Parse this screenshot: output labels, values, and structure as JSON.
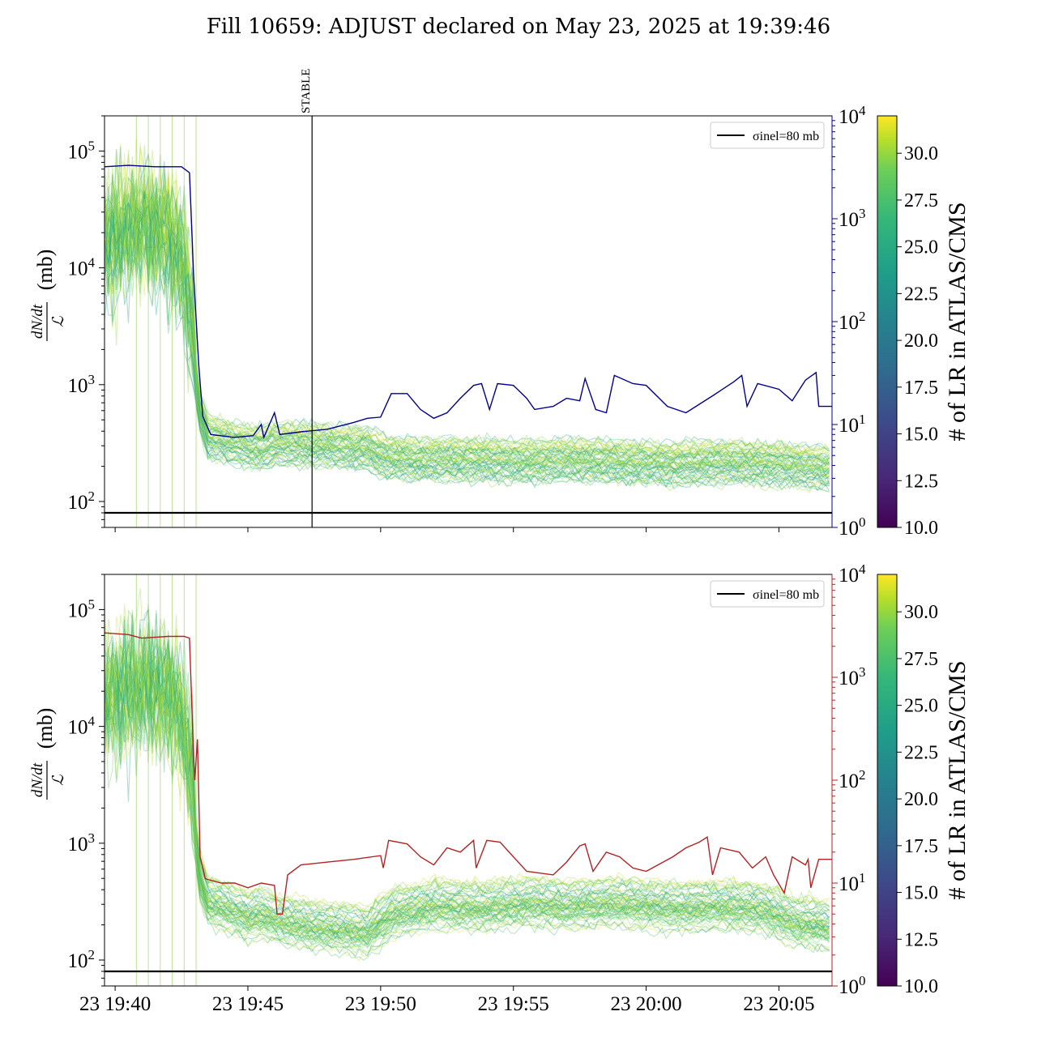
{
  "title": "Fill 10659: ADJUST declared on May 23, 2025 at 19:39:46",
  "chart_data": [
    {
      "type": "line",
      "panel": "top",
      "ylabel": "dN/dt / ℒ (mb)",
      "ylabel_num": "dN/dt",
      "ylabel_den": "ℒ",
      "ylabel_unit": "(mb)",
      "yscale": "log",
      "ylim": [
        60,
        200000
      ],
      "yticks": [
        "10^2",
        "10^3",
        "10^4",
        "10^5"
      ],
      "xlim_minutes_after_1940": [
        -0.4,
        27.0
      ],
      "xticks": [
        "23 19:40",
        "23 19:45",
        "23 19:50",
        "23 19:55",
        "23 20:00",
        "23 20:05"
      ],
      "legend": {
        "label": "σinel=80 mb",
        "placement": "upper right"
      },
      "reference_line": {
        "name": "σinel=80 mb",
        "y": 80,
        "color": "#000000"
      },
      "vline": {
        "label": "STABLE",
        "x_time": "23 19:47:25"
      },
      "twin_axis": {
        "yscale": "log",
        "ylim": [
          1,
          10000
        ],
        "ticks": [
          "10^0",
          "10^1",
          "10^2",
          "10^3",
          "10^4"
        ],
        "color": "#00008b"
      },
      "band_median": [
        [
          -0.4,
          18000
        ],
        [
          0.5,
          22000
        ],
        [
          1.2,
          25000
        ],
        [
          2.0,
          20000
        ],
        [
          2.5,
          12000
        ],
        [
          2.9,
          4000
        ],
        [
          3.1,
          700
        ],
        [
          3.5,
          380
        ],
        [
          4.5,
          330
        ],
        [
          5.5,
          300
        ],
        [
          6.0,
          330
        ],
        [
          7.5,
          320
        ],
        [
          9.5,
          300
        ],
        [
          10.2,
          250
        ],
        [
          12.0,
          240
        ],
        [
          14.0,
          240
        ],
        [
          15.5,
          230
        ],
        [
          17.0,
          240
        ],
        [
          19.0,
          230
        ],
        [
          21.0,
          220
        ],
        [
          23.0,
          230
        ],
        [
          25.0,
          220
        ],
        [
          27.0,
          200
        ]
      ],
      "colorbar": {
        "label": "# of LR in ATLAS/CMS",
        "range": [
          10.0,
          32.0
        ],
        "ticks": [
          "10.0",
          "12.5",
          "15.0",
          "17.5",
          "20.0",
          "22.5",
          "25.0",
          "27.5",
          "30.0"
        ],
        "colormap": "viridis"
      },
      "series_twin": [
        [
          -0.4,
          3200
        ],
        [
          0.5,
          3300
        ],
        [
          1.5,
          3200
        ],
        [
          2.5,
          3200
        ],
        [
          2.8,
          2800
        ],
        [
          2.95,
          300
        ],
        [
          3.15,
          38
        ],
        [
          3.3,
          12
        ],
        [
          3.6,
          8
        ],
        [
          4.5,
          7.5
        ],
        [
          5.2,
          7.8
        ],
        [
          5.5,
          10
        ],
        [
          5.6,
          7.5
        ],
        [
          6.0,
          13
        ],
        [
          6.2,
          8
        ],
        [
          7.0,
          8.5
        ],
        [
          8.0,
          9
        ],
        [
          9.0,
          10.5
        ],
        [
          9.5,
          11.5
        ],
        [
          10.0,
          11.8
        ],
        [
          10.4,
          20
        ],
        [
          11.0,
          20
        ],
        [
          11.5,
          14
        ],
        [
          12.0,
          11.5
        ],
        [
          12.5,
          13
        ],
        [
          13.0,
          18
        ],
        [
          13.5,
          24
        ],
        [
          13.8,
          25
        ],
        [
          14.1,
          14
        ],
        [
          14.4,
          25
        ],
        [
          15.0,
          24
        ],
        [
          15.5,
          18
        ],
        [
          15.8,
          14
        ],
        [
          16.5,
          15
        ],
        [
          17.0,
          18
        ],
        [
          17.5,
          17
        ],
        [
          17.7,
          28
        ],
        [
          18.1,
          14
        ],
        [
          18.5,
          13
        ],
        [
          18.8,
          30
        ],
        [
          19.5,
          25
        ],
        [
          20.0,
          24
        ],
        [
          20.8,
          15
        ],
        [
          21.5,
          13
        ],
        [
          22.5,
          19
        ],
        [
          23.3,
          26
        ],
        [
          23.6,
          30
        ],
        [
          23.8,
          15
        ],
        [
          24.2,
          25
        ],
        [
          25.0,
          22
        ],
        [
          25.5,
          17
        ],
        [
          26.0,
          27
        ],
        [
          26.4,
          32
        ],
        [
          26.5,
          15
        ],
        [
          27.0,
          15
        ]
      ]
    },
    {
      "type": "line",
      "panel": "bottom",
      "ylabel": "dN/dt / ℒ (mb)",
      "ylabel_num": "dN/dt",
      "ylabel_den": "ℒ",
      "ylabel_unit": "(mb)",
      "yscale": "log",
      "ylim": [
        60,
        200000
      ],
      "yticks": [
        "10^2",
        "10^3",
        "10^4",
        "10^5"
      ],
      "xlim_minutes_after_1940": [
        -0.4,
        27.0
      ],
      "xticks": [
        "23 19:40",
        "23 19:45",
        "23 19:50",
        "23 19:55",
        "23 20:00",
        "23 20:05"
      ],
      "legend": {
        "label": "σinel=80 mb",
        "placement": "upper right"
      },
      "reference_line": {
        "name": "σinel=80 mb",
        "y": 80,
        "color": "#000000"
      },
      "twin_axis": {
        "yscale": "log",
        "ylim": [
          1,
          10000
        ],
        "ticks": [
          "10^0",
          "10^1",
          "10^2",
          "10^3",
          "10^4"
        ],
        "color": "#b22222"
      },
      "band_median": [
        [
          -0.4,
          18000
        ],
        [
          0.5,
          22000
        ],
        [
          1.2,
          25000
        ],
        [
          2.0,
          20000
        ],
        [
          2.5,
          12000
        ],
        [
          2.9,
          4000
        ],
        [
          3.1,
          600
        ],
        [
          3.5,
          330
        ],
        [
          4.5,
          270
        ],
        [
          5.0,
          240
        ],
        [
          5.5,
          260
        ],
        [
          6.0,
          230
        ],
        [
          7.5,
          200
        ],
        [
          9.5,
          180
        ],
        [
          10.5,
          260
        ],
        [
          12.0,
          300
        ],
        [
          14.0,
          290
        ],
        [
          15.5,
          320
        ],
        [
          17.0,
          300
        ],
        [
          19.0,
          320
        ],
        [
          21.0,
          290
        ],
        [
          23.0,
          300
        ],
        [
          24.5,
          280
        ],
        [
          25.5,
          220
        ],
        [
          27.0,
          200
        ]
      ],
      "colorbar": {
        "label": "# of LR in ATLAS/CMS",
        "range": [
          10.0,
          32.0
        ],
        "ticks": [
          "10.0",
          "12.5",
          "15.0",
          "17.5",
          "20.0",
          "22.5",
          "25.0",
          "27.5",
          "30.0"
        ],
        "colormap": "viridis"
      },
      "series_twin": [
        [
          -0.4,
          2700
        ],
        [
          0.5,
          2600
        ],
        [
          1.0,
          2400
        ],
        [
          2.0,
          2500
        ],
        [
          2.6,
          2500
        ],
        [
          2.8,
          2400
        ],
        [
          2.95,
          180
        ],
        [
          3.0,
          100
        ],
        [
          3.1,
          250
        ],
        [
          3.2,
          18
        ],
        [
          3.4,
          11
        ],
        [
          4.0,
          10
        ],
        [
          4.5,
          10
        ],
        [
          5.0,
          9
        ],
        [
          5.5,
          10
        ],
        [
          6.0,
          9.5
        ],
        [
          6.1,
          5
        ],
        [
          6.3,
          5
        ],
        [
          6.5,
          12
        ],
        [
          7.0,
          15
        ],
        [
          8.0,
          16
        ],
        [
          9.0,
          17
        ],
        [
          10.0,
          18.5
        ],
        [
          10.1,
          14
        ],
        [
          10.3,
          26
        ],
        [
          11.0,
          24
        ],
        [
          11.5,
          18
        ],
        [
          12.0,
          15
        ],
        [
          12.5,
          22
        ],
        [
          13.0,
          20
        ],
        [
          13.5,
          26
        ],
        [
          13.6,
          14
        ],
        [
          14.0,
          26
        ],
        [
          14.5,
          25
        ],
        [
          15.0,
          18
        ],
        [
          15.5,
          13
        ],
        [
          16.5,
          12
        ],
        [
          17.0,
          16
        ],
        [
          17.5,
          23
        ],
        [
          17.7,
          24
        ],
        [
          18.0,
          13
        ],
        [
          18.5,
          20
        ],
        [
          19.0,
          18
        ],
        [
          19.5,
          14
        ],
        [
          20.0,
          13
        ],
        [
          21.0,
          18
        ],
        [
          21.5,
          22
        ],
        [
          22.0,
          25
        ],
        [
          22.3,
          28
        ],
        [
          22.5,
          12
        ],
        [
          22.8,
          22
        ],
        [
          23.5,
          20
        ],
        [
          24.0,
          14
        ],
        [
          24.5,
          18
        ],
        [
          24.8,
          12
        ],
        [
          25.2,
          8
        ],
        [
          25.5,
          18
        ],
        [
          26.0,
          15
        ],
        [
          26.1,
          17
        ],
        [
          26.2,
          9
        ],
        [
          26.5,
          17
        ],
        [
          27.0,
          17
        ]
      ]
    }
  ]
}
